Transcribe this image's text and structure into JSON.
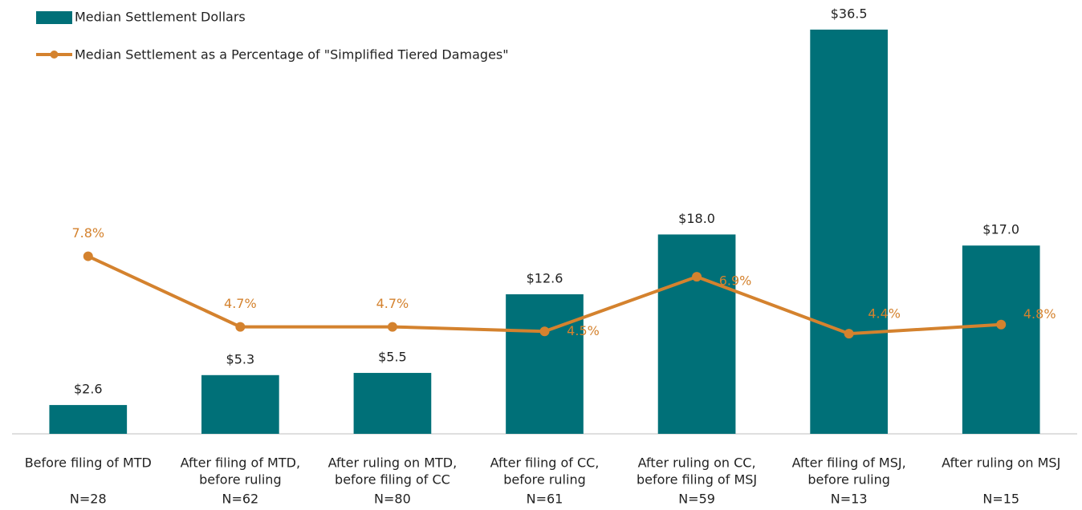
{
  "chart_data": {
    "type": "bar_line",
    "categories": [
      [
        "Before filing of MTD"
      ],
      [
        "After filing of MTD,",
        "before ruling"
      ],
      [
        "After ruling on MTD,",
        "before filing of CC"
      ],
      [
        "After filing of CC,",
        "before ruling"
      ],
      [
        "After ruling on CC,",
        "before filing of MSJ"
      ],
      [
        "After filing of MSJ,",
        "before ruling"
      ],
      [
        "After ruling on MSJ"
      ]
    ],
    "sample_sizes": [
      "N=28",
      "N=62",
      "N=80",
      "N=61",
      "N=59",
      "N=13",
      "N=15"
    ],
    "series": [
      {
        "name": "Median Settlement Dollars",
        "type": "bar",
        "color": "#007078",
        "values": [
          2.6,
          5.3,
          5.5,
          12.6,
          18.0,
          36.5,
          17.0
        ],
        "value_labels": [
          "$2.6",
          "$5.3",
          "$5.5",
          "$12.6",
          "$18.0",
          "$36.5",
          "$17.0"
        ]
      },
      {
        "name": "Median Settlement as a Percentage of \"Simplified Tiered Damages\"",
        "type": "line",
        "axis": "y2",
        "color": "#d4822e",
        "values": [
          7.8,
          4.7,
          4.7,
          4.5,
          6.9,
          4.4,
          4.8
        ],
        "value_labels": [
          "7.8%",
          "4.7%",
          "4.7%",
          "4.5%",
          "6.9%",
          "4.4%",
          "4.8%"
        ]
      }
    ],
    "ylim": [
      0,
      37
    ],
    "y2lim": [
      0,
      18
    ],
    "grid": false
  }
}
